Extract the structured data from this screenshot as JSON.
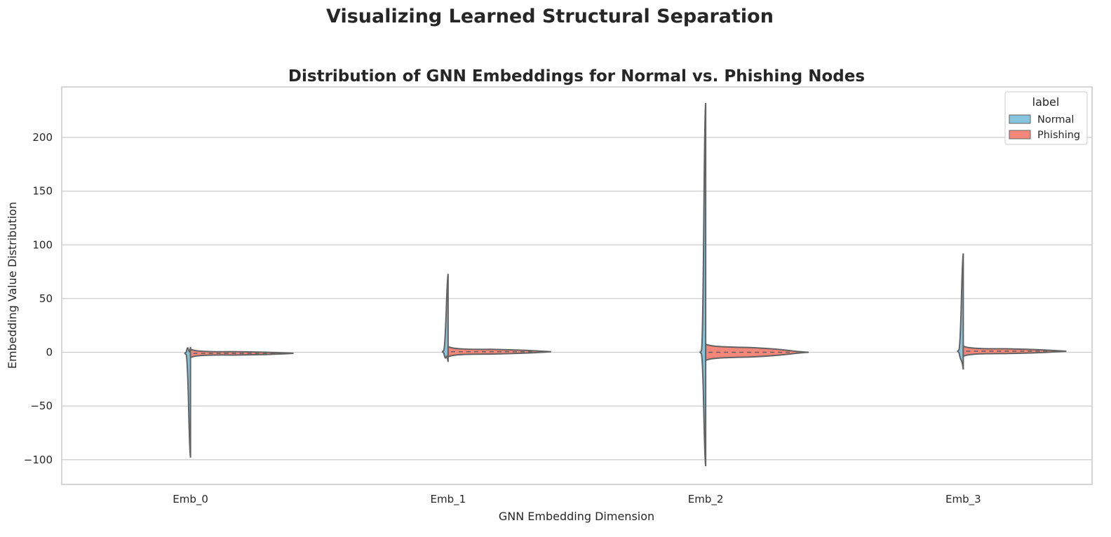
{
  "colors": {
    "normal": "#87c5de",
    "phishing": "#f4877a",
    "outline": "#636363",
    "grid": "#cccccc",
    "frame": "#cccccc",
    "text": "#262626"
  },
  "chart_data": {
    "type": "violin",
    "suptitle": "Visualizing Learned Structural Separation",
    "title": "Distribution of GNN Embeddings for Normal vs. Phishing Nodes",
    "xlabel": "GNN Embedding Dimension",
    "ylabel": "Embedding Value Distribution",
    "categories": [
      "Emb_0",
      "Emb_1",
      "Emb_2",
      "Emb_3"
    ],
    "ylim": [
      -123,
      247
    ],
    "yticks": [
      -100,
      -50,
      0,
      50,
      100,
      150,
      200
    ],
    "ytick_labels": [
      "−100",
      "−50",
      "0",
      "50",
      "100",
      "150",
      "200"
    ],
    "grid": "y",
    "legend": {
      "title": "label",
      "position": "top-right",
      "entries": [
        "Normal",
        "Phishing"
      ]
    },
    "violins": [
      {
        "category": "Emb_0",
        "min": -98,
        "max": 5,
        "median": -1,
        "q1": -1.5,
        "q3": -0.5
      },
      {
        "category": "Emb_1",
        "min": -9,
        "max": 73,
        "median": 0.5,
        "q1": -0.5,
        "q3": 1.5
      },
      {
        "category": "Emb_2",
        "min": -106,
        "max": 232,
        "median": 0,
        "q1": -2,
        "q3": 2
      },
      {
        "category": "Emb_3",
        "min": -16,
        "max": 92,
        "median": 1,
        "q1": 0,
        "q3": 2
      }
    ]
  }
}
